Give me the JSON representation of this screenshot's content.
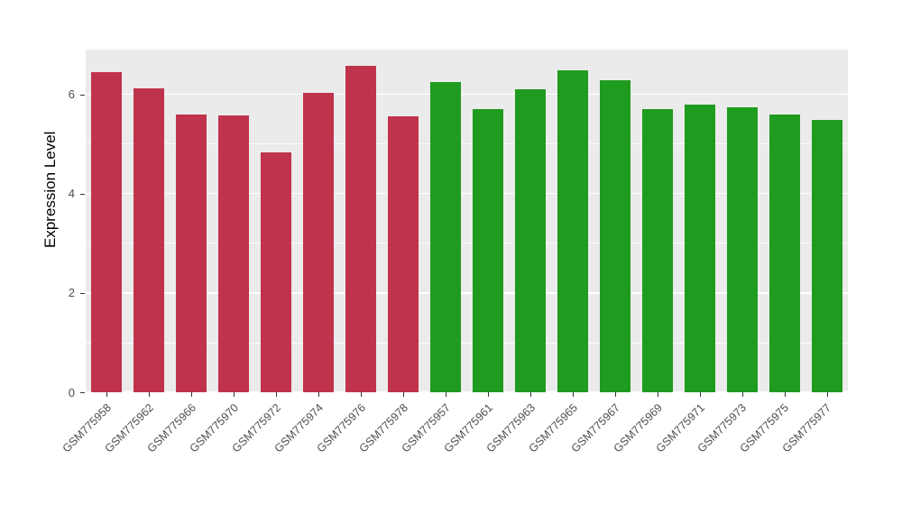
{
  "chart_data": {
    "type": "bar",
    "title": "",
    "xlabel": "",
    "ylabel": "Expression Level",
    "ylim": [
      0,
      6.9
    ],
    "yticks": [
      0,
      2,
      4,
      6
    ],
    "yticks_minor": [
      1,
      3,
      5
    ],
    "grid": true,
    "legend_position": "none",
    "panel_bg": "#ebebeb",
    "grid_color": "#ffffff",
    "group_colors": {
      "red": "#c0334d",
      "green": "#1f9b1f"
    },
    "bars": [
      {
        "label": "GSM775958",
        "value": 6.45,
        "group": "red"
      },
      {
        "label": "GSM775962",
        "value": 6.12,
        "group": "red"
      },
      {
        "label": "GSM775966",
        "value": 5.6,
        "group": "red"
      },
      {
        "label": "GSM775970",
        "value": 5.58,
        "group": "red"
      },
      {
        "label": "GSM775972",
        "value": 4.83,
        "group": "red"
      },
      {
        "label": "GSM775974",
        "value": 6.02,
        "group": "red"
      },
      {
        "label": "GSM775976",
        "value": 6.58,
        "group": "red"
      },
      {
        "label": "GSM775978",
        "value": 5.56,
        "group": "red"
      },
      {
        "label": "GSM775957",
        "value": 6.25,
        "group": "green"
      },
      {
        "label": "GSM775961",
        "value": 5.7,
        "group": "green"
      },
      {
        "label": "GSM775963",
        "value": 6.1,
        "group": "green"
      },
      {
        "label": "GSM775965",
        "value": 6.48,
        "group": "green"
      },
      {
        "label": "GSM775967",
        "value": 6.28,
        "group": "green"
      },
      {
        "label": "GSM775969",
        "value": 5.7,
        "group": "green"
      },
      {
        "label": "GSM775971",
        "value": 5.8,
        "group": "green"
      },
      {
        "label": "GSM775973",
        "value": 5.74,
        "group": "green"
      },
      {
        "label": "GSM775975",
        "value": 5.6,
        "group": "green"
      },
      {
        "label": "GSM775977",
        "value": 5.48,
        "group": "green"
      }
    ]
  }
}
